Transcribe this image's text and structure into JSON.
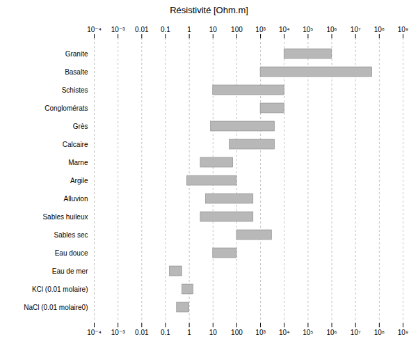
{
  "chart_data": {
    "type": "bar",
    "orientation": "horizontal",
    "title": "Résistivité [Ohm.m]",
    "categories": [
      "Granite",
      "Basalte",
      "Schistes",
      "Conglomérats",
      "Grès",
      "Calcaire",
      "Marne",
      "Argile",
      "Alluvion",
      "Sables huileux",
      "Sables sec",
      "Eau douce",
      "Eau de mer",
      "KCl (0.01 molaire)",
      "NaCl (0.01 molaire0)"
    ],
    "values": [
      [
        10000.0,
        1000000.0
      ],
      [
        1000.0,
        50000000.0
      ],
      [
        10,
        10000.0
      ],
      [
        1000.0,
        10000.0
      ],
      [
        8,
        4000.0
      ],
      [
        50,
        4000.0
      ],
      [
        3,
        70
      ],
      [
        0.8,
        100
      ],
      [
        5,
        500
      ],
      [
        3,
        500
      ],
      [
        100,
        3000
      ],
      [
        10,
        100
      ],
      [
        0.15,
        0.5
      ],
      [
        0.5,
        1.5
      ],
      [
        0.3,
        1.0
      ]
    ],
    "color": "#b8b8b8",
    "log": "x",
    "xlim": [
      0.0001,
      1000000000.0
    ],
    "xticks": [
      {
        "value": 0.0001,
        "label": "10⁻⁴"
      },
      {
        "value": 0.001,
        "label": "10⁻³"
      },
      0.01,
      0.1,
      1,
      10,
      100,
      {
        "value": 1000.0,
        "label": "10³"
      },
      {
        "value": 10000.0,
        "label": "10⁴"
      },
      {
        "value": 100000.0,
        "label": "10⁵"
      },
      {
        "value": 1000000.0,
        "label": "10⁶"
      },
      {
        "value": 10000000.0,
        "label": "10⁷"
      },
      {
        "value": 100000000.0,
        "label": "10⁸"
      },
      {
        "value": 1000000000.0,
        "label": "10⁹"
      }
    ],
    "grid": true
  }
}
